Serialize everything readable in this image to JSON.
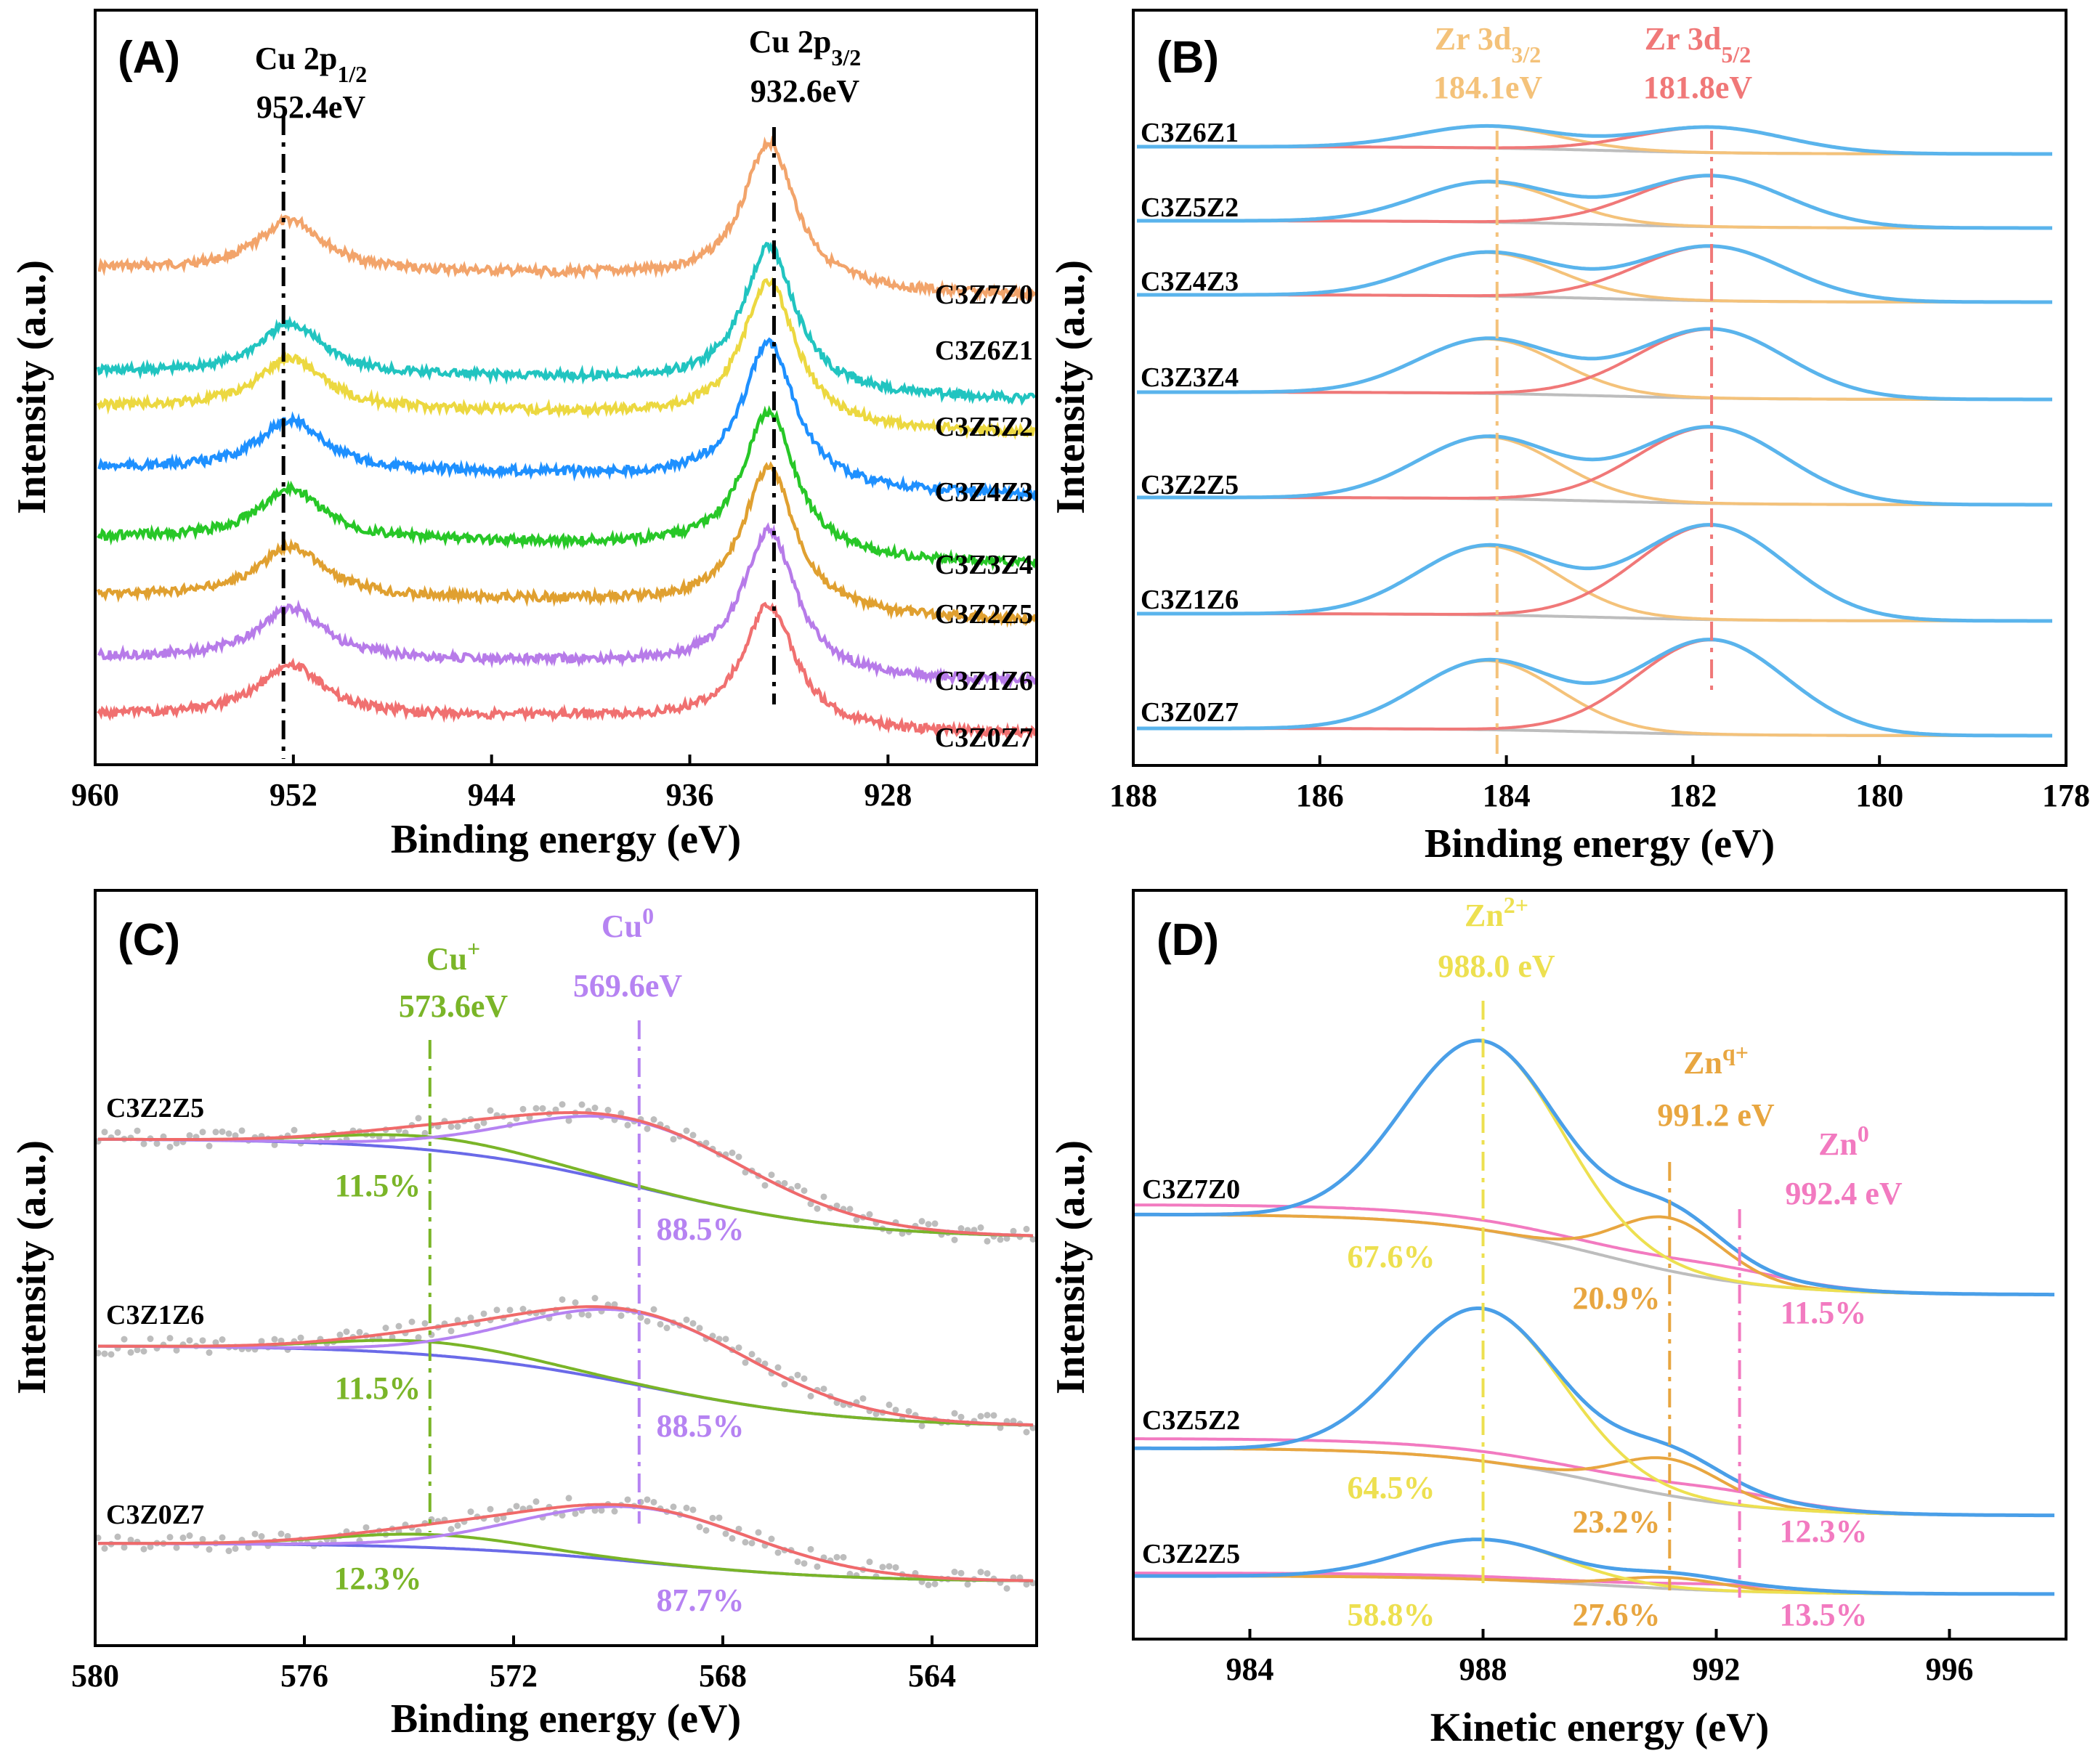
{
  "colors": {
    "orange": "#f2a46b",
    "cyan": "#21c4c0",
    "yellow": "#ecd840",
    "blue": "#1e90ff",
    "green": "#27c727",
    "gold": "#e0a030",
    "purple": "#b77be9",
    "red": "#f07070",
    "sky": "#5ab4ec",
    "fitRed": "#f06a6a",
    "fitGold": "#f3c27a",
    "grey": "#bdbdbd",
    "cOlive": "#7ab528",
    "cPurple": "#b683f2",
    "cBlue": "#6a6ae8",
    "dYellow": "#ede050",
    "dOrange": "#e8a640",
    "dPink": "#f27ac0",
    "dBlue": "#4a9fe8",
    "zrGold": "#f4c27a",
    "zrRed": "#f07878"
  },
  "chart_data": [
    {
      "panel": "(A)",
      "type": "line",
      "xlabel": "Binding energy (eV)",
      "ylabel": "Intensity (a.u.)",
      "xlim": [
        960,
        922
      ],
      "xticks": [
        "960",
        "952",
        "944",
        "936",
        "928"
      ],
      "xtick_values": [
        960,
        952,
        944,
        936,
        928
      ],
      "series": [
        {
          "name": "C3Z7Z0",
          "color": "#f2a46b",
          "peak_height": 1.0
        },
        {
          "name": "C3Z6Z1",
          "color": "#21c4c0",
          "peak_height": 1.0
        },
        {
          "name": "C3Z5Z2",
          "color": "#ecd840",
          "peak_height": 1.0
        },
        {
          "name": "C3Z4Z3",
          "color": "#1e90ff",
          "peak_height": 1.0
        },
        {
          "name": "C3Z3Z4",
          "color": "#27c727",
          "peak_height": 1.0
        },
        {
          "name": "C3Z2Z5",
          "color": "#e0a030",
          "peak_height": 1.0
        },
        {
          "name": "C3Z1Z6",
          "color": "#b77be9",
          "peak_height": 1.0
        },
        {
          "name": "C3Z0Z7",
          "color": "#f07070",
          "peak_height": 1.0
        }
      ],
      "peaks": [
        {
          "label_main": "Cu 2p",
          "label_sub": "1/2",
          "energy_label": "952.4eV",
          "x": 952.4
        },
        {
          "label_main": "Cu 2p",
          "label_sub": "3/2",
          "energy_label": "932.6eV",
          "x": 932.6
        }
      ]
    },
    {
      "panel": "(B)",
      "type": "line",
      "xlabel": "Binding energy (eV)",
      "ylabel": "Intensity (a.u.)",
      "xlim": [
        188,
        178
      ],
      "xticks": [
        "188",
        "186",
        "184",
        "182",
        "180",
        "178"
      ],
      "xtick_values": [
        188,
        186,
        184,
        182,
        180,
        178
      ],
      "series": [
        "C3Z6Z1",
        "C3Z5Z2",
        "C3Z4Z3",
        "C3Z3Z4",
        "C3Z2Z5",
        "C3Z1Z6",
        "C3Z0Z7"
      ],
      "peaks": [
        {
          "label_main": "Zr 3d",
          "label_sub": "3/2",
          "energy_label": "184.1eV",
          "x": 184.1
        },
        {
          "label_main": "Zr 3d",
          "label_sub": "5/2",
          "energy_label": "181.8eV",
          "x": 181.8
        }
      ]
    },
    {
      "panel": "(C)",
      "type": "line",
      "xlabel": "Binding energy (eV)",
      "ylabel": "Intensity (a.u.)",
      "xlim": [
        580,
        562
      ],
      "xticks": [
        "580",
        "576",
        "572",
        "568",
        "564"
      ],
      "xtick_values": [
        580,
        576,
        572,
        568,
        564
      ],
      "peaks": [
        {
          "label_main": "Cu",
          "label_sup": "+",
          "energy_label": "573.6eV",
          "x": 573.6
        },
        {
          "label_main": "Cu",
          "label_sup": "0",
          "energy_label": "569.6eV",
          "x": 569.6
        }
      ],
      "series": [
        {
          "name": "C3Z2Z5",
          "cu_plus": "11.5%",
          "cu_zero": "88.5%"
        },
        {
          "name": "C3Z1Z6",
          "cu_plus": "11.5%",
          "cu_zero": "88.5%"
        },
        {
          "name": "C3Z0Z7",
          "cu_plus": "12.3%",
          "cu_zero": "87.7%"
        }
      ]
    },
    {
      "panel": "(D)",
      "type": "line",
      "xlabel": "Kinetic energy (eV)",
      "ylabel": "Intensity (a.u.)",
      "xlim": [
        982,
        998
      ],
      "xticks": [
        "984",
        "988",
        "992",
        "996"
      ],
      "xtick_values": [
        984,
        988,
        992,
        996
      ],
      "peaks": [
        {
          "label_main": "Zn",
          "label_sup": "2+",
          "energy_label": "988.0 eV",
          "x": 988.0
        },
        {
          "label_main": "Zn",
          "label_sup": "q+",
          "energy_label": "991.2 eV",
          "x": 991.2
        },
        {
          "label_main": "Zn",
          "label_sup": "0",
          "energy_label": "992.4 eV",
          "x": 992.4
        }
      ],
      "series": [
        {
          "name": "C3Z7Z0",
          "zn2": "67.6%",
          "znq": "20.9%",
          "zn0": "11.5%",
          "height": 1.0
        },
        {
          "name": "C3Z5Z2",
          "zn2": "64.5%",
          "znq": "23.2%",
          "zn0": "12.3%",
          "height": 0.75
        },
        {
          "name": "C3Z2Z5",
          "zn2": "58.8%",
          "znq": "27.6%",
          "zn0": "13.5%",
          "height": 0.22
        }
      ]
    }
  ]
}
